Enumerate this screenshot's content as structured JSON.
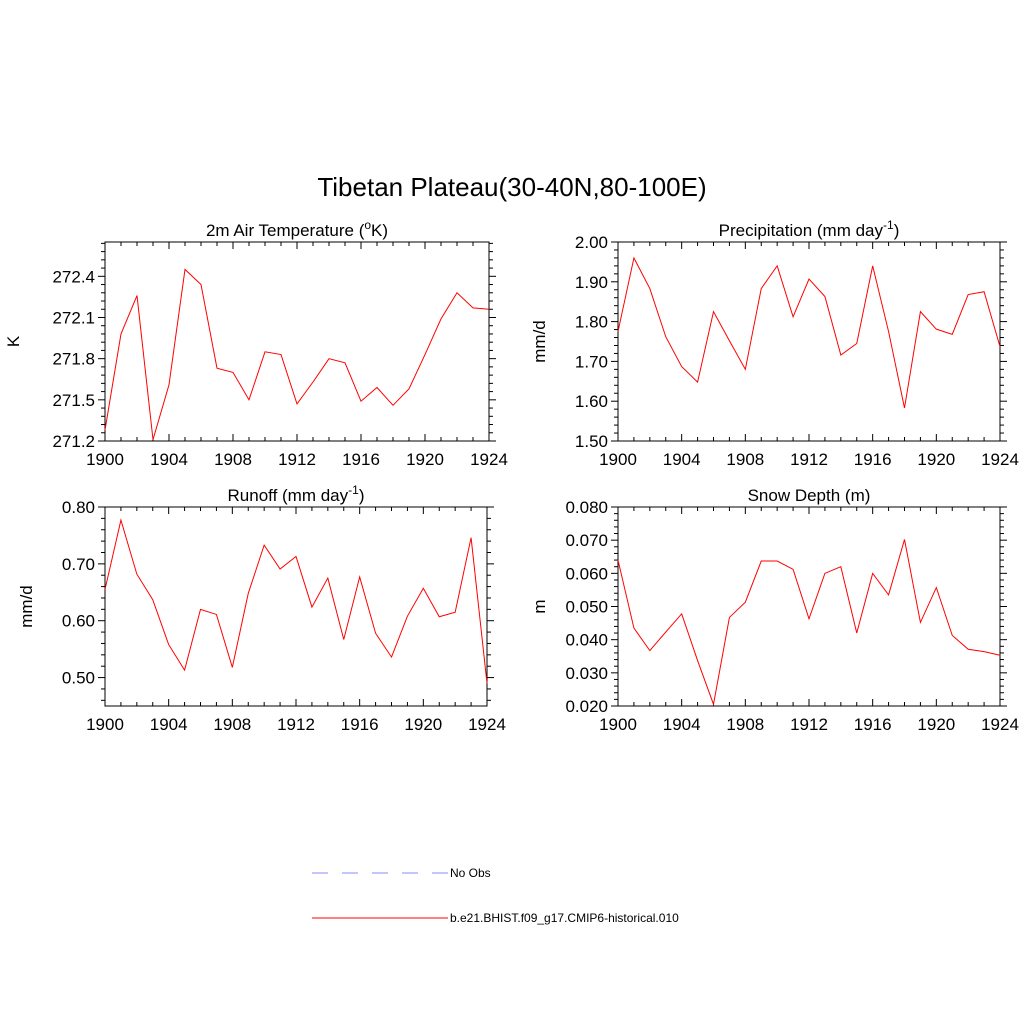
{
  "title": "Tibetan Plateau(30-40N,80-100E)",
  "legend": [
    {
      "label": "No Obs",
      "color": "#a0a0ff",
      "dash": true
    },
    {
      "label": "b.e21.BHIST.f09_g17.CMIP6-historical.010",
      "color": "#ff0000",
      "dash": false
    }
  ],
  "chart_data": [
    {
      "type": "line",
      "title": "2m Air Temperature (°K)",
      "title_parts": {
        "pre": "2m Air Temperature (",
        "sup": "o",
        "post": "K)"
      },
      "xlabel": "",
      "ylabel": "K",
      "xlim": [
        1900,
        1924
      ],
      "ylim": [
        271.2,
        272.65
      ],
      "xticks": [
        1900,
        1904,
        1908,
        1912,
        1916,
        1920,
        1924
      ],
      "yticks": [
        "271.2",
        "271.5",
        "271.8",
        "272.1",
        "272.4"
      ],
      "series": [
        {
          "color": "#ff0000",
          "x": [
            1900,
            1901,
            1902,
            1903,
            1904,
            1905,
            1906,
            1907,
            1908,
            1909,
            1910,
            1911,
            1912,
            1913,
            1914,
            1915,
            1916,
            1917,
            1918,
            1919,
            1920,
            1921,
            1922,
            1923,
            1924
          ],
          "values": [
            271.28,
            271.98,
            272.26,
            271.21,
            271.61,
            272.45,
            272.34,
            271.73,
            271.7,
            271.5,
            271.85,
            271.83,
            271.47,
            271.63,
            271.8,
            271.77,
            271.49,
            271.59,
            271.46,
            271.58,
            271.83,
            272.09,
            272.28,
            272.17,
            272.16
          ]
        }
      ]
    },
    {
      "type": "line",
      "title": "Precipitation (mm day-1)",
      "title_parts": {
        "pre": "Precipitation (mm day",
        "sup": "-1",
        "post": ")"
      },
      "xlabel": "",
      "ylabel": "mm/d",
      "xlim": [
        1900,
        1924
      ],
      "ylim": [
        1.5,
        2.0
      ],
      "xticks": [
        1900,
        1904,
        1908,
        1912,
        1916,
        1920,
        1924
      ],
      "yticks": [
        "1.50",
        "1.60",
        "1.70",
        "1.80",
        "1.90",
        "2.00"
      ],
      "series": [
        {
          "color": "#ff0000",
          "x": [
            1900,
            1901,
            1902,
            1903,
            1904,
            1905,
            1906,
            1907,
            1908,
            1909,
            1910,
            1911,
            1912,
            1913,
            1914,
            1915,
            1916,
            1917,
            1918,
            1919,
            1920,
            1921,
            1922,
            1923,
            1924
          ],
          "values": [
            1.775,
            1.96,
            1.883,
            1.762,
            1.687,
            1.648,
            1.825,
            1.752,
            1.68,
            1.883,
            1.94,
            1.812,
            1.907,
            1.863,
            1.716,
            1.745,
            1.94,
            1.775,
            1.583,
            1.825,
            1.781,
            1.768,
            1.868,
            1.875,
            1.737
          ]
        }
      ]
    },
    {
      "type": "line",
      "title": "Runoff (mm day-1)",
      "title_parts": {
        "pre": "Runoff (mm day",
        "sup": "-1",
        "post": ")"
      },
      "xlabel": "",
      "ylabel": "mm/d",
      "xlim": [
        1900,
        1924
      ],
      "ylim": [
        0.45,
        0.8
      ],
      "xticks": [
        1900,
        1904,
        1908,
        1912,
        1916,
        1920,
        1924
      ],
      "yticks": [
        "0.50",
        "0.60",
        "0.70",
        "0.80"
      ],
      "series": [
        {
          "color": "#ff0000",
          "x": [
            1900,
            1901,
            1902,
            1903,
            1904,
            1905,
            1906,
            1907,
            1908,
            1909,
            1910,
            1911,
            1912,
            1913,
            1914,
            1915,
            1916,
            1917,
            1918,
            1919,
            1920,
            1921,
            1922,
            1923,
            1924
          ],
          "values": [
            0.655,
            0.777,
            0.682,
            0.637,
            0.558,
            0.513,
            0.62,
            0.611,
            0.518,
            0.648,
            0.733,
            0.691,
            0.713,
            0.624,
            0.675,
            0.567,
            0.677,
            0.578,
            0.536,
            0.608,
            0.657,
            0.607,
            0.615,
            0.746,
            0.49
          ]
        }
      ]
    },
    {
      "type": "line",
      "title": "Snow Depth (m)",
      "title_parts": {
        "pre": "Snow Depth (m)",
        "sup": "",
        "post": ""
      },
      "xlabel": "",
      "ylabel": "m",
      "xlim": [
        1900,
        1924
      ],
      "ylim": [
        0.02,
        0.08
      ],
      "xticks": [
        1900,
        1904,
        1908,
        1912,
        1916,
        1920,
        1924
      ],
      "yticks": [
        "0.020",
        "0.030",
        "0.040",
        "0.050",
        "0.060",
        "0.070",
        "0.080"
      ],
      "series": [
        {
          "color": "#ff0000",
          "x": [
            1900,
            1901,
            1902,
            1903,
            1904,
            1905,
            1906,
            1907,
            1908,
            1909,
            1910,
            1911,
            1912,
            1913,
            1914,
            1915,
            1916,
            1917,
            1918,
            1919,
            1920,
            1921,
            1922,
            1923,
            1924
          ],
          "values": [
            0.064,
            0.0435,
            0.0367,
            0.0423,
            0.0478,
            0.0337,
            0.0205,
            0.0467,
            0.0513,
            0.0637,
            0.0637,
            0.0612,
            0.0463,
            0.06,
            0.062,
            0.042,
            0.06,
            0.0535,
            0.0702,
            0.0452,
            0.0557,
            0.0413,
            0.0371,
            0.0364,
            0.0353
          ]
        }
      ]
    }
  ]
}
